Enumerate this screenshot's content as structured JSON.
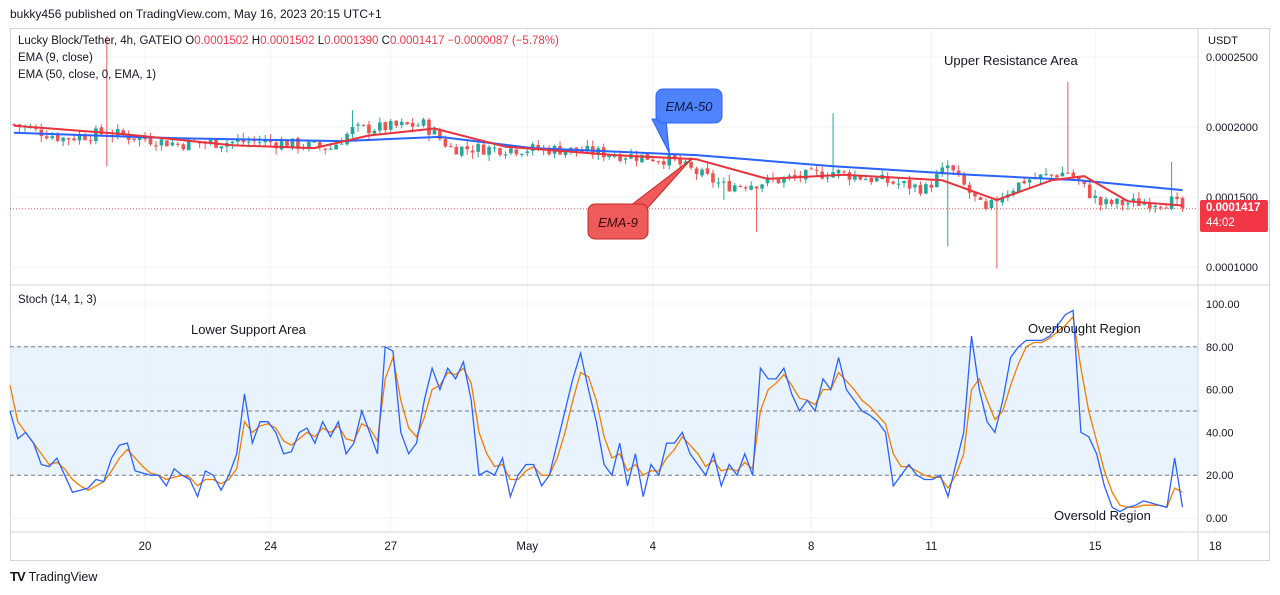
{
  "header": {
    "published": "bukky456 published on TradingView.com, May 16, 2023 20:15 UTC+1"
  },
  "legend": {
    "symbol": "Lucky Block/Tether, 4h, GATEIO",
    "o_label": "O",
    "o_value": "0.0001502",
    "h_label": "H",
    "h_value": "0.0001502",
    "l_label": "L",
    "l_value": "0.0001390",
    "c_label": "C",
    "c_value": "0.0001417",
    "change": "−0.0000087 (−5.78%)",
    "ema9": "EMA (9, close)",
    "ema50": "EMA (50, close, 0, EMA, 1)",
    "stoch": "Stoch (14, 1, 3)"
  },
  "price_axis": {
    "currency": "USDT",
    "last_price": "0.0001417",
    "countdown": "44:02"
  },
  "annotations": {
    "upper_resistance": "Upper Resistance Area",
    "lower_support": "Lower Support Area",
    "overbought": "Overbought Region",
    "oversold": "Oversold Region",
    "ema50_callout": "EMA-50",
    "ema9_callout": "EMA-9"
  },
  "footer": {
    "brand": "TradingView",
    "logo": "TV"
  },
  "colors": {
    "up": "#26a69a",
    "down": "#ef5350",
    "ema9": "#e8323c",
    "ema50": "#2962ff",
    "stoch_k": "#2962ff",
    "stoch_d": "#f57c00",
    "band_fill": "#e3f0fc"
  },
  "chart_data": [
    {
      "type": "candlestick",
      "title": "Lucky Block/Tether, 4h, GATEIO",
      "ylim": [
        8.8e-05,
        0.00027
      ],
      "y_ticks": [
        "0.0002500",
        "0.0002000",
        "0.0001500",
        "0.0001000"
      ],
      "x_ticks": [
        "20",
        "24",
        "27",
        "May",
        "4",
        "8",
        "11",
        "15",
        "18"
      ],
      "x_tick_index": [
        24,
        47,
        69,
        94,
        117,
        146,
        168,
        198,
        220
      ],
      "key_points": [
        {
          "i": 0,
          "close": 0.000202
        },
        {
          "i": 9,
          "close": 0.000192
        },
        {
          "i": 17,
          "close": 0.000196,
          "high": 0.000265,
          "low": 0.000172
        },
        {
          "i": 30,
          "close": 0.000188
        },
        {
          "i": 45,
          "close": 0.00019
        },
        {
          "i": 58,
          "close": 0.000185
        },
        {
          "i": 62,
          "close": 0.000198,
          "high": 0.000212
        },
        {
          "i": 75,
          "close": 0.000202
        },
        {
          "i": 80,
          "close": 0.000185
        },
        {
          "i": 100,
          "close": 0.000184
        },
        {
          "i": 112,
          "close": 0.00018
        },
        {
          "i": 120,
          "close": 0.000177
        },
        {
          "i": 130,
          "close": 0.000158,
          "low": 0.000148
        },
        {
          "i": 136,
          "close": 0.00016,
          "low": 0.000125
        },
        {
          "i": 150,
          "close": 0.000168,
          "high": 0.00021
        },
        {
          "i": 167,
          "close": 0.000156
        },
        {
          "i": 171,
          "close": 0.000172,
          "low": 0.000115
        },
        {
          "i": 178,
          "close": 0.000139
        },
        {
          "i": 180,
          "close": 0.000149,
          "low": 9.9e-05
        },
        {
          "i": 185,
          "close": 0.000162
        },
        {
          "i": 193,
          "close": 0.000168,
          "high": 0.000232
        },
        {
          "i": 199,
          "close": 0.000145
        },
        {
          "i": 212,
          "close": 0.000147,
          "high": 0.000175
        },
        {
          "i": 214,
          "close": 0.0001417
        }
      ],
      "ema9": [
        [
          0,
          0.000201
        ],
        [
          20,
          0.000195
        ],
        [
          40,
          0.000187
        ],
        [
          55,
          0.000185
        ],
        [
          65,
          0.000194
        ],
        [
          77,
          0.000199
        ],
        [
          90,
          0.000186
        ],
        [
          110,
          0.00018
        ],
        [
          125,
          0.000177
        ],
        [
          138,
          0.000163
        ],
        [
          152,
          0.000166
        ],
        [
          170,
          0.000162
        ],
        [
          180,
          0.000148
        ],
        [
          190,
          0.000162
        ],
        [
          196,
          0.000165
        ],
        [
          204,
          0.000147
        ],
        [
          214,
          0.000144
        ]
      ],
      "ema50": [
        [
          0,
          0.000196
        ],
        [
          30,
          0.000192
        ],
        [
          60,
          0.00019
        ],
        [
          78,
          0.000193
        ],
        [
          95,
          0.000185
        ],
        [
          125,
          0.00018
        ],
        [
          150,
          0.000172
        ],
        [
          175,
          0.000166
        ],
        [
          195,
          0.000162
        ],
        [
          214,
          0.000155
        ]
      ]
    },
    {
      "type": "line",
      "title": "Stoch (14, 1, 3)",
      "ylim": [
        0,
        100
      ],
      "y_ticks": [
        "100.00",
        "80.00",
        "60.00",
        "40.00",
        "20.00",
        "0.00"
      ],
      "bands": [
        20,
        50,
        80
      ],
      "series": [
        {
          "values": [
            50,
            37,
            40,
            35,
            25,
            24,
            28,
            20,
            12,
            13,
            14,
            18,
            17,
            28,
            34,
            35,
            22,
            21,
            20,
            20,
            15,
            23,
            20,
            18,
            10,
            22,
            20,
            13,
            20,
            30,
            58,
            35,
            45,
            45,
            40,
            30,
            31,
            40,
            42,
            35,
            45,
            38,
            45,
            30,
            35,
            50,
            40,
            30,
            80,
            78,
            40,
            30,
            35,
            55,
            70,
            60,
            70,
            65,
            73,
            55,
            20,
            22,
            20,
            28,
            10,
            20,
            25,
            25,
            15,
            20,
            35,
            50,
            65,
            77,
            60,
            45,
            25,
            20,
            35,
            15,
            30,
            10,
            25,
            20,
            35,
            35,
            40,
            30,
            25,
            20,
            30,
            15,
            25,
            20,
            30,
            20,
            70,
            65,
            65,
            70,
            58,
            50,
            55,
            50,
            65,
            60,
            75,
            60,
            55,
            50,
            48,
            45,
            40,
            15,
            20,
            25,
            20,
            18,
            18,
            20,
            10,
            25,
            40,
            85,
            60,
            45,
            40,
            55,
            75,
            80,
            83,
            83,
            83,
            85,
            90,
            95,
            97,
            40,
            38,
            30,
            15,
            5,
            3,
            5,
            6,
            8,
            7,
            6,
            5,
            28,
            5
          ]
        },
        {
          "values": [
            62,
            45,
            40,
            35,
            30,
            25,
            26,
            23,
            18,
            15,
            13,
            15,
            17,
            22,
            28,
            32,
            28,
            24,
            21,
            20,
            18,
            19,
            20,
            19,
            15,
            18,
            18,
            16,
            18,
            23,
            45,
            40,
            43,
            44,
            42,
            36,
            34,
            37,
            40,
            38,
            42,
            40,
            43,
            37,
            36,
            44,
            42,
            36,
            65,
            75,
            55,
            42,
            38,
            47,
            60,
            62,
            68,
            67,
            70,
            63,
            40,
            30,
            24,
            25,
            18,
            18,
            22,
            24,
            20,
            20,
            28,
            40,
            55,
            68,
            66,
            55,
            38,
            28,
            30,
            22,
            25,
            20,
            22,
            22,
            28,
            32,
            38,
            34,
            30,
            24,
            27,
            22,
            23,
            22,
            26,
            23,
            50,
            60,
            63,
            67,
            62,
            56,
            55,
            53,
            60,
            60,
            68,
            64,
            60,
            55,
            52,
            48,
            44,
            30,
            24,
            24,
            22,
            20,
            19,
            19,
            14,
            20,
            30,
            60,
            65,
            55,
            46,
            50,
            62,
            72,
            80,
            82,
            82,
            84,
            87,
            90,
            94,
            70,
            50,
            36,
            22,
            12,
            6,
            5,
            5,
            6,
            6,
            6,
            5,
            14,
            12
          ]
        }
      ]
    }
  ]
}
